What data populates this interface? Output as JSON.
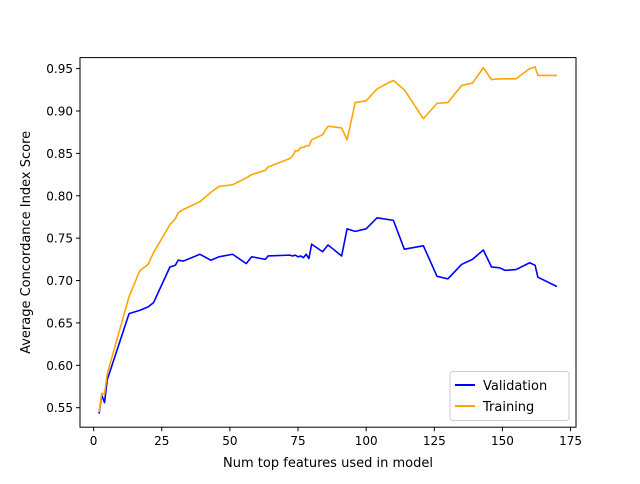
{
  "chart_data": {
    "type": "line",
    "xlabel": "Num top features used in model",
    "ylabel": "Average Concordance Index Score",
    "xlim": [
      -5,
      177
    ],
    "ylim": [
      0.527,
      0.963
    ],
    "xticks": [
      0,
      25,
      50,
      75,
      100,
      125,
      150,
      175
    ],
    "yticks": [
      0.55,
      0.6,
      0.65,
      0.7,
      0.75,
      0.8,
      0.85,
      0.9,
      0.95
    ],
    "xtick_labels": [
      "0",
      "25",
      "50",
      "75",
      "100",
      "125",
      "150",
      "175"
    ],
    "ytick_labels": [
      "0.55",
      "0.60",
      "0.65",
      "0.70",
      "0.75",
      "0.80",
      "0.85",
      "0.90",
      "0.95"
    ],
    "legend_position": "lower-right",
    "grid": false,
    "series": [
      {
        "name": "Validation",
        "color": "#0000ff",
        "x": [
          2,
          3,
          4,
          5,
          13,
          17,
          20,
          22,
          28,
          30,
          31,
          33,
          39,
          43,
          46,
          51,
          56,
          58,
          63,
          64,
          72,
          73,
          74,
          75,
          76,
          77,
          78,
          79,
          80,
          84,
          86,
          91,
          93,
          96,
          100,
          104,
          108,
          110,
          114,
          121,
          126,
          130,
          135,
          139,
          143,
          146,
          149,
          151,
          155,
          160,
          162,
          163,
          170
        ],
        "y": [
          0.543,
          0.565,
          0.556,
          0.583,
          0.661,
          0.665,
          0.669,
          0.674,
          0.716,
          0.718,
          0.724,
          0.723,
          0.731,
          0.724,
          0.728,
          0.731,
          0.72,
          0.728,
          0.725,
          0.729,
          0.73,
          0.729,
          0.73,
          0.728,
          0.729,
          0.727,
          0.731,
          0.726,
          0.743,
          0.734,
          0.742,
          0.729,
          0.761,
          0.758,
          0.761,
          0.774,
          0.772,
          0.771,
          0.737,
          0.741,
          0.705,
          0.702,
          0.719,
          0.725,
          0.736,
          0.716,
          0.715,
          0.712,
          0.713,
          0.721,
          0.718,
          0.704,
          0.693
        ]
      },
      {
        "name": "Training",
        "color": "#ffa500",
        "x": [
          2,
          3,
          4,
          5,
          13,
          17,
          20,
          22,
          28,
          30,
          31,
          33,
          39,
          43,
          46,
          51,
          56,
          58,
          63,
          64,
          72,
          73,
          74,
          75,
          76,
          77,
          78,
          79,
          80,
          84,
          86,
          91,
          93,
          96,
          100,
          104,
          108,
          110,
          114,
          121,
          126,
          130,
          135,
          139,
          143,
          146,
          149,
          151,
          155,
          160,
          162,
          163,
          170
        ],
        "y": [
          0.545,
          0.567,
          0.566,
          0.59,
          0.681,
          0.712,
          0.719,
          0.733,
          0.766,
          0.773,
          0.78,
          0.784,
          0.793,
          0.804,
          0.811,
          0.813,
          0.821,
          0.825,
          0.83,
          0.834,
          0.844,
          0.847,
          0.853,
          0.853,
          0.857,
          0.857,
          0.859,
          0.859,
          0.866,
          0.872,
          0.882,
          0.88,
          0.866,
          0.91,
          0.912,
          0.926,
          0.933,
          0.936,
          0.925,
          0.891,
          0.909,
          0.91,
          0.93,
          0.933,
          0.951,
          0.937,
          0.938,
          0.938,
          0.938,
          0.95,
          0.952,
          0.942,
          0.942
        ]
      }
    ]
  }
}
